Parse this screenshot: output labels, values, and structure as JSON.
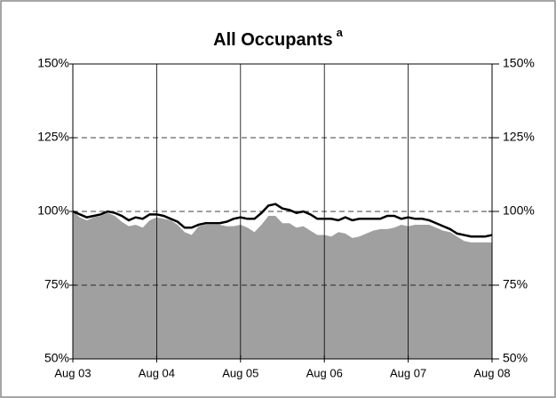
{
  "chart_data": {
    "type": "area-line",
    "title": "All Occupants",
    "title_superscript": "a",
    "categories": [
      "Aug 03",
      null,
      null,
      null,
      null,
      null,
      null,
      null,
      null,
      null,
      null,
      null,
      "Aug 04",
      null,
      null,
      null,
      null,
      null,
      null,
      null,
      null,
      null,
      null,
      null,
      "Aug 05",
      null,
      null,
      null,
      null,
      null,
      null,
      null,
      null,
      null,
      null,
      null,
      "Aug 06",
      null,
      null,
      null,
      null,
      null,
      null,
      null,
      null,
      null,
      null,
      null,
      "Aug 07",
      null,
      null,
      null,
      null,
      null,
      null,
      null,
      null,
      null,
      null,
      null,
      "Aug 08"
    ],
    "series": [
      {
        "kind": "area",
        "color": "#a0a0a0",
        "values": [
          100,
          98,
          97,
          98,
          98.5,
          99.5,
          98.5,
          96.5,
          95,
          95.5,
          94.5,
          97,
          98,
          97.5,
          97,
          95.5,
          93,
          92,
          95,
          95.5,
          95.5,
          95.5,
          95,
          95,
          95.5,
          94.5,
          93,
          95.5,
          98.5,
          98.5,
          96,
          96,
          94.5,
          95,
          93.5,
          92,
          92,
          91.5,
          93,
          92.5,
          91,
          91.5,
          92.5,
          93.5,
          94,
          94,
          94.5,
          95.5,
          95,
          95.5,
          95.5,
          95.5,
          94.5,
          93.5,
          93,
          91.5,
          90,
          89.5,
          89.5,
          89.5,
          89.5
        ]
      },
      {
        "kind": "line",
        "color": "#000000",
        "values": [
          100,
          99,
          98,
          98.5,
          99,
          100,
          99.5,
          98.5,
          97,
          98,
          97.5,
          99,
          99,
          98.5,
          97.5,
          96.5,
          94.5,
          94.5,
          95.5,
          96,
          96,
          96,
          96.5,
          97.5,
          98,
          97.5,
          97.5,
          99.5,
          102,
          102.5,
          101,
          100.5,
          99.5,
          100,
          99,
          97.5,
          97.5,
          97.5,
          97,
          98,
          97,
          97.5,
          97.5,
          97.5,
          97.5,
          98.5,
          98.5,
          97.5,
          98,
          97.5,
          97.5,
          97,
          96,
          95,
          94,
          92.5,
          92,
          91.5,
          91.5,
          91.5,
          92
        ]
      }
    ],
    "ylim": [
      50,
      150
    ],
    "yticks": [
      {
        "value": 50,
        "label": "50%"
      },
      {
        "value": 75,
        "label": "75%"
      },
      {
        "value": 100,
        "label": "100%"
      },
      {
        "value": 125,
        "label": "125%"
      },
      {
        "value": 150,
        "label": "150%"
      }
    ],
    "y2lim": [
      50,
      150
    ],
    "y2ticks": [
      {
        "value": 50,
        "label": "50%"
      },
      {
        "value": 75,
        "label": "75%"
      },
      {
        "value": 100,
        "label": "100%"
      },
      {
        "value": 125,
        "label": "125%"
      },
      {
        "value": 150,
        "label": "150%"
      }
    ],
    "grid": true
  }
}
